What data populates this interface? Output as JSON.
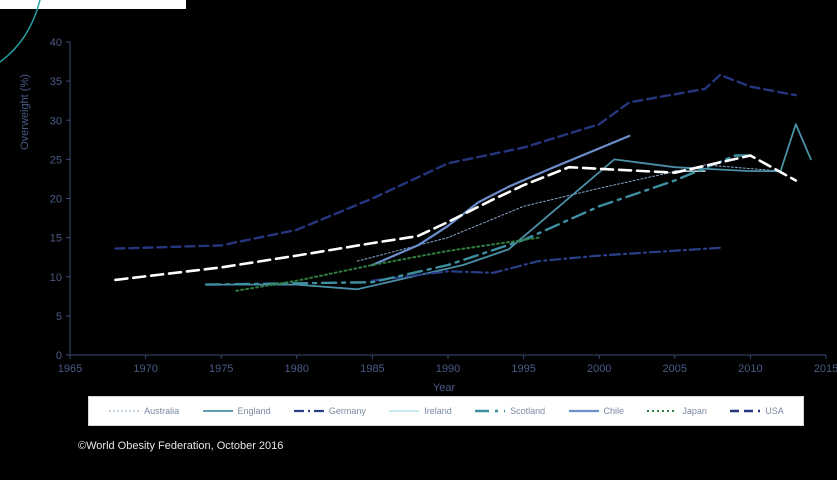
{
  "chart_data": {
    "type": "line",
    "ylabel": "Overweight (%)",
    "xlabel": "Year",
    "xlim": [
      1965,
      2015
    ],
    "ylim": [
      0,
      40
    ],
    "x_ticks": [
      1965,
      1970,
      1975,
      1980,
      1985,
      1990,
      1995,
      2000,
      2005,
      2010,
      2015
    ],
    "y_ticks": [
      0,
      5,
      10,
      15,
      20,
      25,
      30,
      35,
      40
    ],
    "grid": false,
    "legend_position": "bottom",
    "series": [
      {
        "name": "Australia",
        "color": "#8aa6cc",
        "dash": "2,2",
        "width": 1,
        "points": [
          [
            1984,
            12
          ],
          [
            1990,
            15
          ],
          [
            1995,
            19
          ],
          [
            2000,
            21.3
          ],
          [
            2007,
            24.3
          ],
          [
            2012,
            23.5
          ]
        ]
      },
      {
        "name": "England",
        "color": "#4a8fa6",
        "dash": "",
        "width": 1.8,
        "points": [
          [
            1975,
            9
          ],
          [
            1980,
            9
          ],
          [
            1984,
            8.4
          ],
          [
            1991,
            11.5
          ],
          [
            1994,
            13.5
          ],
          [
            2001,
            25
          ],
          [
            2005,
            24
          ],
          [
            2010,
            23.5
          ],
          [
            2012,
            23.5
          ],
          [
            2013,
            29.5
          ],
          [
            2014,
            25
          ]
        ]
      },
      {
        "name": "Germany",
        "color": "#2a3f8a",
        "dash": "10,4,2,4",
        "width": 2.2,
        "points": [
          [
            1985,
            9.5
          ],
          [
            1990,
            10.7
          ],
          [
            1993,
            10.5
          ],
          [
            1996,
            12
          ],
          [
            2000,
            12.7
          ],
          [
            2008,
            13.7
          ]
        ]
      },
      {
        "name": "Ireland",
        "color": "#b6e4ee",
        "dash": "",
        "width": 1.5,
        "points": [
          [
            2005,
            23.5
          ],
          [
            2007,
            23.5
          ]
        ]
      },
      {
        "name": "Scotland",
        "color": "#3f8fa3",
        "dash": "14,6,3,6",
        "width": 2.4,
        "points": [
          [
            1974,
            9
          ],
          [
            1985,
            9.3
          ],
          [
            1990,
            11.5
          ],
          [
            1995,
            14.7
          ],
          [
            2000,
            19
          ],
          [
            2005,
            22.3
          ],
          [
            2009,
            25.5
          ],
          [
            2010,
            25.5
          ]
        ]
      },
      {
        "name": "Chile",
        "color": "#6c8fcc",
        "dash": "",
        "width": 2.2,
        "points": [
          [
            1985,
            11.5
          ],
          [
            1988,
            14
          ],
          [
            1990,
            16.5
          ],
          [
            1992,
            19.5
          ],
          [
            1994,
            21.5
          ],
          [
            1997,
            24
          ],
          [
            2002,
            28
          ]
        ]
      },
      {
        "name": "Japan",
        "color": "#2f7d3f",
        "dash": "2,3",
        "width": 2,
        "points": [
          [
            1976,
            8.2
          ],
          [
            1980,
            9.5
          ],
          [
            1985,
            11.5
          ],
          [
            1990,
            13.3
          ],
          [
            1995,
            14.7
          ],
          [
            1996,
            15
          ]
        ]
      },
      {
        "name": "USA",
        "color": "#26367e",
        "dash": "9,5",
        "width": 2.4,
        "points": [
          [
            1968,
            13.6
          ],
          [
            1975,
            14
          ],
          [
            1980,
            16
          ],
          [
            1985,
            20
          ],
          [
            1990,
            24.5
          ],
          [
            1995,
            26.5
          ],
          [
            2000,
            29.5
          ],
          [
            2002,
            32.3
          ],
          [
            2007,
            34
          ],
          [
            2008,
            35.8
          ],
          [
            2010,
            34.3
          ],
          [
            2013,
            33.2
          ]
        ]
      },
      {
        "name": "",
        "color": "#ffffff",
        "dash": "12,6",
        "width": 2.6,
        "points": [
          [
            1968,
            9.6
          ],
          [
            1975,
            11.2
          ],
          [
            1980,
            12.7
          ],
          [
            1985,
            14.3
          ],
          [
            1988,
            15.2
          ],
          [
            1990,
            17
          ],
          [
            1993,
            19.9
          ],
          [
            1995,
            21.7
          ],
          [
            1998,
            24
          ],
          [
            2000,
            23.8
          ],
          [
            2005,
            23.3
          ],
          [
            2010,
            25.5
          ],
          [
            2013,
            22.3
          ]
        ]
      }
    ]
  },
  "legend": [
    {
      "name": "Australia",
      "color": "#8aa6cc",
      "dash": "2,2",
      "width": 1
    },
    {
      "name": "England",
      "color": "#4a8fa6",
      "dash": "",
      "width": 1.8
    },
    {
      "name": "Germany",
      "color": "#2a3f8a",
      "dash": "10,4,2,4",
      "width": 2.2
    },
    {
      "name": "Ireland",
      "color": "#b6e4ee",
      "dash": "",
      "width": 1.5
    },
    {
      "name": "Scotland",
      "color": "#3f8fa3",
      "dash": "14,6,3,6",
      "width": 2.4
    },
    {
      "name": "Chile",
      "color": "#6c8fcc",
      "dash": "",
      "width": 2.2
    },
    {
      "name": "Japan",
      "color": "#2f7d3f",
      "dash": "2,3",
      "width": 2
    },
    {
      "name": "USA",
      "color": "#26367e",
      "dash": "9,5",
      "width": 2.4
    }
  ],
  "footer": "©World Obesity Federation, October 2016",
  "colors": {
    "background": "#000000",
    "axis_text": "#4a5a86",
    "axis_line": "#3a4a76"
  }
}
